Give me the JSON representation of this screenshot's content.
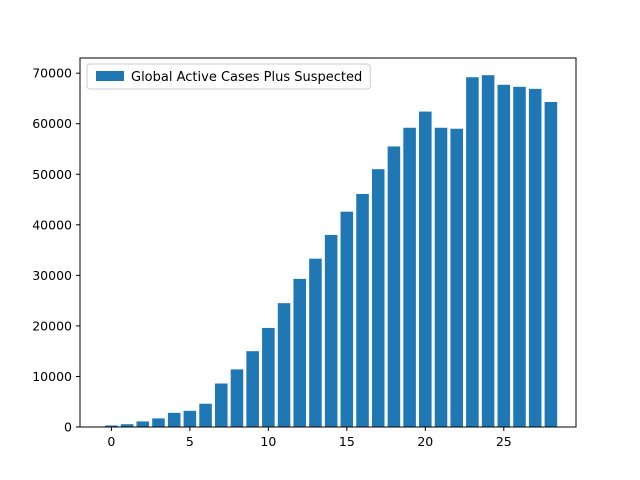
{
  "chart_data": {
    "type": "bar",
    "title": "",
    "xlabel": "",
    "ylabel": "",
    "bar_color": "#1f77b4",
    "legend": {
      "label": "Global Active Cases Plus Suspected",
      "placement": "upper-left"
    },
    "xlim": [
      -2.0,
      29.6
    ],
    "ylim": [
      0,
      73000
    ],
    "xticks": [
      0,
      5,
      10,
      15,
      20,
      25
    ],
    "xtick_labels": [
      "0",
      "5",
      "10",
      "15",
      "20",
      "25"
    ],
    "yticks": [
      0,
      10000,
      20000,
      30000,
      40000,
      50000,
      60000,
      70000
    ],
    "ytick_labels": [
      "0",
      "10000",
      "20000",
      "30000",
      "40000",
      "50000",
      "60000",
      "70000"
    ],
    "grid": false,
    "bar_width": 0.8,
    "x": [
      0,
      1,
      2,
      3,
      4,
      5,
      6,
      7,
      8,
      9,
      10,
      11,
      12,
      13,
      14,
      15,
      16,
      17,
      18,
      19,
      20,
      21,
      22,
      23,
      24,
      25,
      26,
      27,
      28
    ],
    "values": [
      300,
      550,
      1100,
      1700,
      2800,
      3200,
      4600,
      8600,
      11400,
      15000,
      19600,
      24500,
      29300,
      33300,
      38000,
      42600,
      46100,
      51000,
      55500,
      59200,
      62400,
      59200,
      59000,
      69200,
      69600,
      67700,
      67300,
      66900,
      64300
    ]
  }
}
